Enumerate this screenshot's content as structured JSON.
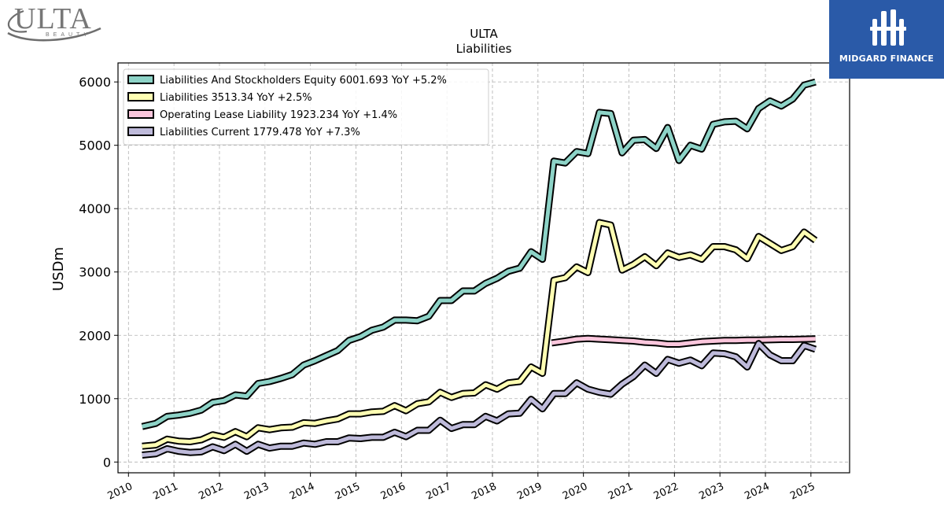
{
  "brand": {
    "ulta_logo_text": "ULTA",
    "ulta_logo_subtext": "BEAUTY",
    "watermark_text": "MIDGARD FINANCE"
  },
  "chart_data": {
    "type": "line",
    "title": "ULTA",
    "subtitle": "Liabilities",
    "ylabel": "USDm",
    "xlabel": "",
    "xlim": [
      2009.77,
      2025.85
    ],
    "ylim": [
      -170,
      6300
    ],
    "yticks": [
      0,
      1000,
      2000,
      3000,
      4000,
      5000,
      6000
    ],
    "xticks": [
      2010,
      2011,
      2012,
      2013,
      2014,
      2015,
      2016,
      2017,
      2018,
      2019,
      2020,
      2021,
      2022,
      2023,
      2024,
      2025
    ],
    "grid": true,
    "legend_position": "top-left",
    "series": [
      {
        "name": "Liabilities And Stockholders Equity",
        "legend_label": "Liabilities And Stockholders Equity  6001.693 YoY +5.2%",
        "color": "#8dd3c7",
        "x": [
          2010.3,
          2010.6,
          2010.85,
          2011.1,
          2011.35,
          2011.6,
          2011.85,
          2012.1,
          2012.35,
          2012.6,
          2012.85,
          2013.1,
          2013.35,
          2013.6,
          2013.85,
          2014.1,
          2014.35,
          2014.6,
          2014.85,
          2015.1,
          2015.35,
          2015.6,
          2015.85,
          2016.1,
          2016.35,
          2016.6,
          2016.85,
          2017.1,
          2017.35,
          2017.6,
          2017.85,
          2018.1,
          2018.35,
          2018.6,
          2018.85,
          2019.1,
          2019.35,
          2019.6,
          2019.85,
          2020.1,
          2020.35,
          2020.6,
          2020.85,
          2021.1,
          2021.35,
          2021.6,
          2021.85,
          2022.1,
          2022.35,
          2022.6,
          2022.85,
          2023.1,
          2023.35,
          2023.6,
          2023.85,
          2024.1,
          2024.35,
          2024.6,
          2024.85,
          2025.1
        ],
        "values": [
          560,
          610,
          720,
          740,
          770,
          820,
          940,
          970,
          1060,
          1040,
          1240,
          1270,
          1320,
          1380,
          1530,
          1600,
          1680,
          1760,
          1920,
          1980,
          2080,
          2130,
          2240,
          2240,
          2230,
          2300,
          2550,
          2550,
          2700,
          2700,
          2820,
          2900,
          3010,
          3060,
          3320,
          3200,
          4750,
          4720,
          4900,
          4870,
          5520,
          5500,
          4880,
          5080,
          5090,
          4950,
          5280,
          4760,
          5000,
          4940,
          5330,
          5370,
          5380,
          5260,
          5580,
          5700,
          5620,
          5730,
          5950,
          6000
        ]
      },
      {
        "name": "Liabilities",
        "legend_label": "Liabilities  3513.34 YoY +2.5%",
        "color": "#ffffb3",
        "x": [
          2010.3,
          2010.6,
          2010.85,
          2011.1,
          2011.35,
          2011.6,
          2011.85,
          2012.1,
          2012.35,
          2012.6,
          2012.85,
          2013.1,
          2013.35,
          2013.6,
          2013.85,
          2014.1,
          2014.35,
          2014.6,
          2014.85,
          2015.1,
          2015.35,
          2015.6,
          2015.85,
          2016.1,
          2016.35,
          2016.6,
          2016.85,
          2017.1,
          2017.35,
          2017.6,
          2017.85,
          2018.1,
          2018.35,
          2018.6,
          2018.85,
          2019.1,
          2019.35,
          2019.6,
          2019.85,
          2020.1,
          2020.35,
          2020.6,
          2020.85,
          2021.1,
          2021.35,
          2021.6,
          2021.85,
          2022.1,
          2022.35,
          2022.6,
          2022.85,
          2023.1,
          2023.35,
          2023.6,
          2023.85,
          2024.1,
          2024.35,
          2024.6,
          2024.85,
          2025.1
        ],
        "values": [
          250,
          270,
          360,
          330,
          320,
          350,
          430,
          390,
          480,
          400,
          540,
          510,
          540,
          550,
          620,
          610,
          650,
          680,
          760,
          760,
          790,
          800,
          890,
          810,
          920,
          950,
          1100,
          1020,
          1080,
          1090,
          1220,
          1150,
          1250,
          1270,
          1500,
          1400,
          2870,
          2910,
          3080,
          2990,
          3780,
          3740,
          3030,
          3120,
          3240,
          3100,
          3300,
          3230,
          3270,
          3200,
          3400,
          3400,
          3350,
          3210,
          3560,
          3450,
          3340,
          3400,
          3630,
          3500
        ]
      },
      {
        "name": "Operating Lease Liability",
        "legend_label": "Operating Lease Liability  1923.234 YoY +1.4%",
        "color": "#fbc6dc",
        "x": [
          2019.3,
          2019.6,
          2019.85,
          2020.1,
          2020.35,
          2020.6,
          2020.85,
          2021.1,
          2021.35,
          2021.6,
          2021.85,
          2022.1,
          2022.35,
          2022.6,
          2022.85,
          2023.1,
          2023.35,
          2023.6,
          2023.85,
          2024.1,
          2024.35,
          2024.6,
          2024.85,
          2025.1
        ],
        "values": [
          1880,
          1910,
          1940,
          1950,
          1940,
          1930,
          1920,
          1910,
          1890,
          1880,
          1860,
          1860,
          1880,
          1900,
          1910,
          1920,
          1920,
          1925,
          1925,
          1930,
          1935,
          1935,
          1940,
          1945
        ]
      },
      {
        "name": "Liabilities Current",
        "legend_label": "Liabilities Current  1779.478 YoY +7.3%",
        "color": "#bebada",
        "x": [
          2010.3,
          2010.6,
          2010.85,
          2011.1,
          2011.35,
          2011.6,
          2011.85,
          2012.1,
          2012.35,
          2012.6,
          2012.85,
          2013.1,
          2013.35,
          2013.6,
          2013.85,
          2014.1,
          2014.35,
          2014.6,
          2014.85,
          2015.1,
          2015.35,
          2015.6,
          2015.85,
          2016.1,
          2016.35,
          2016.6,
          2016.85,
          2017.1,
          2017.35,
          2017.6,
          2017.85,
          2018.1,
          2018.35,
          2018.6,
          2018.85,
          2019.1,
          2019.35,
          2019.6,
          2019.85,
          2020.1,
          2020.35,
          2020.6,
          2020.85,
          2021.1,
          2021.35,
          2021.6,
          2021.85,
          2022.1,
          2022.35,
          2022.6,
          2022.85,
          2023.1,
          2023.35,
          2023.6,
          2023.85,
          2024.1,
          2024.35,
          2024.6,
          2024.85,
          2025.1
        ],
        "values": [
          110,
          130,
          210,
          170,
          150,
          160,
          240,
          180,
          280,
          170,
          280,
          220,
          250,
          250,
          300,
          280,
          320,
          320,
          380,
          370,
          390,
          390,
          470,
          400,
          500,
          500,
          660,
          530,
          590,
          590,
          720,
          650,
          760,
          770,
          990,
          840,
          1080,
          1080,
          1250,
          1150,
          1100,
          1070,
          1230,
          1350,
          1530,
          1400,
          1620,
          1560,
          1610,
          1520,
          1720,
          1710,
          1660,
          1500,
          1870,
          1690,
          1600,
          1600,
          1840,
          1780
        ]
      }
    ]
  }
}
